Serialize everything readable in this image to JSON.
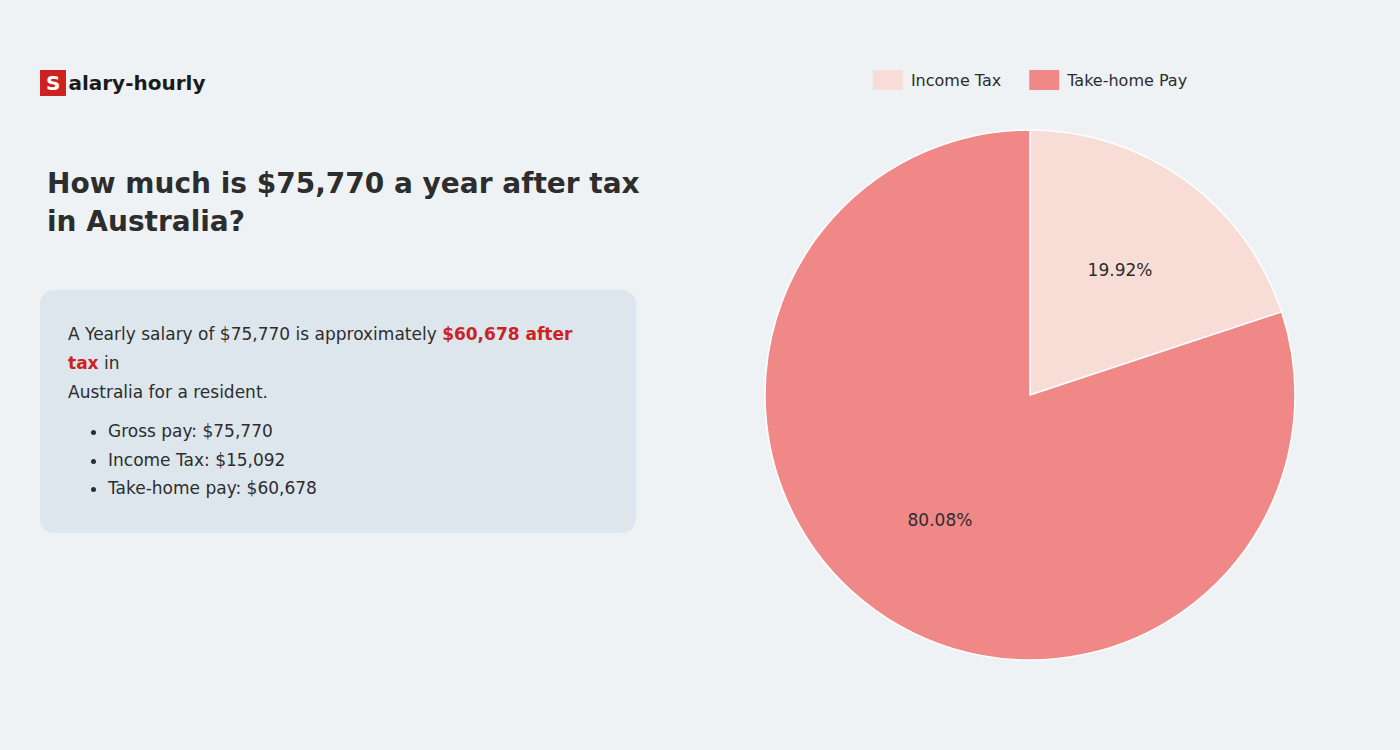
{
  "chart_data": {
    "type": "pie",
    "title": "How much is $75,770 a year after tax in Australia?",
    "categories": [
      "Income Tax",
      "Take-home Pay"
    ],
    "values": [
      19.92,
      80.08
    ],
    "value_labels": [
      "19.92%",
      "80.08%"
    ],
    "colors": [
      "#f7ddd5",
      "#f08888"
    ],
    "data_labels": true,
    "legend": "top",
    "annotations": [
      "S",
      "alary-hourly",
      "A Yearly salary of $75,770 is approximately ",
      "$60,678 after tax",
      " in",
      "Australia for a resident.",
      "Gross pay: $75,770",
      "Income Tax: $15,092",
      "Take-home pay: $60,678"
    ]
  }
}
